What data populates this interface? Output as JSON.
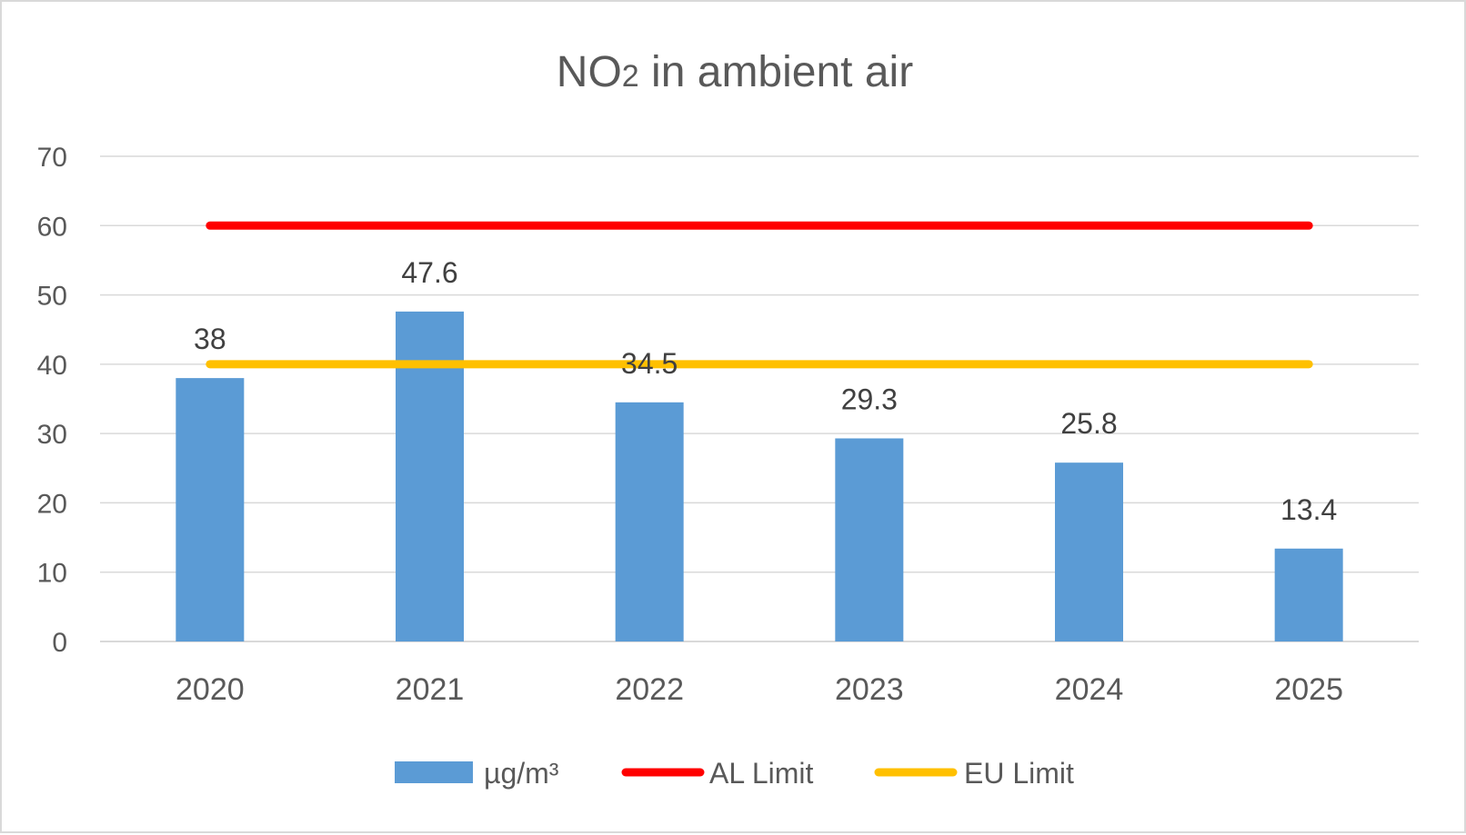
{
  "chart_data": {
    "type": "bar",
    "title_main": "NO",
    "title_sub": "2",
    "title_rest": " in ambient air",
    "categories": [
      "2020",
      "2021",
      "2022",
      "2023",
      "2024",
      "2025"
    ],
    "series": [
      {
        "name": "µg/m³",
        "kind": "bar",
        "color": "#5b9bd5",
        "values": [
          38,
          47.6,
          34.5,
          29.3,
          25.8,
          13.4
        ],
        "labels": [
          "38",
          "47.6",
          "34.5",
          "29.3",
          "25.8",
          "13.4"
        ]
      },
      {
        "name": "AL Limit",
        "kind": "line",
        "color": "#ff0000",
        "values": [
          60,
          60,
          60,
          60,
          60,
          60
        ]
      },
      {
        "name": "EU Limit",
        "kind": "line",
        "color": "#ffc000",
        "values": [
          40,
          40,
          40,
          40,
          40,
          40
        ]
      }
    ],
    "ylim": [
      0,
      70
    ],
    "yticks": [
      "0",
      "10",
      "20",
      "30",
      "40",
      "50",
      "60",
      "70"
    ],
    "grid": true,
    "gridline_color": "#d9d9d9",
    "legend_position": "bottom"
  }
}
